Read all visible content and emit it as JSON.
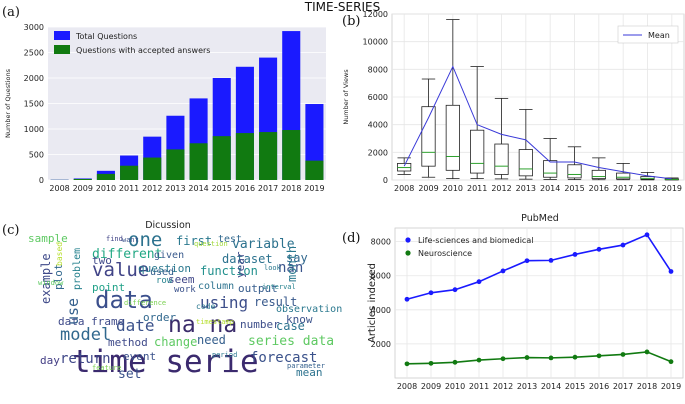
{
  "figure_title": "TIME-SERIES",
  "chart_data": [
    {
      "panel": "(a)",
      "type": "bar",
      "categories": [
        "2008",
        "2009",
        "2010",
        "2011",
        "2012",
        "2013",
        "2014",
        "2015",
        "2016",
        "2017",
        "2018",
        "2019"
      ],
      "series": [
        {
          "name": "Total Questions",
          "color": "#1a1aff",
          "values": [
            5,
            30,
            180,
            480,
            850,
            1260,
            1600,
            2000,
            2220,
            2400,
            2920,
            1490
          ]
        },
        {
          "name": "Questions with accepted answers",
          "color": "#117a11",
          "values": [
            3,
            20,
            120,
            280,
            440,
            600,
            720,
            860,
            920,
            940,
            980,
            380
          ]
        }
      ],
      "ylabel": "Number of Questions",
      "ylim": [
        0,
        3000
      ],
      "yticks": [
        0,
        500,
        1000,
        1500,
        2000,
        2500,
        3000
      ],
      "legend": "top-left",
      "grid": true
    },
    {
      "panel": "(b)",
      "type": "box",
      "categories": [
        "2008",
        "2009",
        "2010",
        "2011",
        "2012",
        "2013",
        "2014",
        "2015",
        "2016",
        "2017",
        "2018",
        "2019"
      ],
      "boxes": [
        {
          "min": 400,
          "q1": 650,
          "median": 900,
          "q3": 1200,
          "max": 1600
        },
        {
          "min": 200,
          "q1": 1000,
          "median": 2000,
          "q3": 5300,
          "max": 7300
        },
        {
          "min": 100,
          "q1": 700,
          "median": 1700,
          "q3": 5400,
          "max": 11600
        },
        {
          "min": 100,
          "q1": 500,
          "median": 1200,
          "q3": 3600,
          "max": 8200
        },
        {
          "min": 80,
          "q1": 400,
          "median": 1000,
          "q3": 2600,
          "max": 5900
        },
        {
          "min": 60,
          "q1": 300,
          "median": 800,
          "q3": 2200,
          "max": 5100
        },
        {
          "min": 40,
          "q1": 200,
          "median": 500,
          "q3": 1400,
          "max": 3000
        },
        {
          "min": 30,
          "q1": 150,
          "median": 400,
          "q3": 1100,
          "max": 2400
        },
        {
          "min": 20,
          "q1": 100,
          "median": 250,
          "q3": 700,
          "max": 1600
        },
        {
          "min": 20,
          "q1": 80,
          "median": 200,
          "q3": 500,
          "max": 1200
        },
        {
          "min": 10,
          "q1": 50,
          "median": 120,
          "q3": 250,
          "max": 550
        },
        {
          "min": 5,
          "q1": 20,
          "median": 40,
          "q3": 80,
          "max": 150
        }
      ],
      "mean": {
        "name": "Mean",
        "color": "#3a3ad8",
        "values": [
          1000,
          4500,
          8200,
          4000,
          3300,
          2900,
          1300,
          1300,
          900,
          600,
          300,
          80
        ]
      },
      "ylabel": "Number of Views",
      "ylim": [
        0,
        12000
      ],
      "yticks": [
        0,
        2000,
        4000,
        6000,
        8000,
        10000,
        12000
      ],
      "legend": "top-right",
      "grid": true
    },
    {
      "panel": "(c)",
      "type": "wordcloud",
      "title": "Dicussion",
      "words": [
        {
          "text": "time serie",
          "color": "#3b2a6e"
        },
        {
          "text": "data",
          "color": "#3b4f8c"
        },
        {
          "text": "value",
          "color": "#414487"
        },
        {
          "text": "na na",
          "color": "#3a2b6a"
        },
        {
          "text": "one",
          "color": "#2c728e"
        },
        {
          "text": "model",
          "color": "#31688e"
        },
        {
          "text": "using",
          "color": "#3d4e8a"
        },
        {
          "text": "date",
          "color": "#3b528b"
        },
        {
          "text": "data frame",
          "color": "#3e4a89"
        },
        {
          "text": "question",
          "color": "#2a788e"
        },
        {
          "text": "function",
          "color": "#21908d"
        },
        {
          "text": "series data",
          "color": "#5ec962"
        },
        {
          "text": "forecast",
          "color": "#3b528b"
        },
        {
          "text": "variable",
          "color": "#2c728e"
        },
        {
          "text": "different",
          "color": "#22a884"
        },
        {
          "text": "example",
          "color": "#3e4989"
        },
        {
          "text": "plot",
          "color": "#31688e"
        },
        {
          "text": "problem",
          "color": "#26828e"
        },
        {
          "text": "use",
          "color": "#35608d"
        },
        {
          "text": "first",
          "color": "#2a788e"
        },
        {
          "text": "dataset",
          "color": "#2c728e"
        },
        {
          "text": "result",
          "color": "#38598c"
        },
        {
          "text": "output",
          "color": "#365c8d"
        },
        {
          "text": "method",
          "color": "#3e4989"
        },
        {
          "text": "return",
          "color": "#3f4788"
        },
        {
          "text": "number",
          "color": "#3d4e8a"
        },
        {
          "text": "observation",
          "color": "#2a788e"
        },
        {
          "text": "seem",
          "color": "#404688"
        },
        {
          "text": "change",
          "color": "#5ec962"
        },
        {
          "text": "need",
          "color": "#355f8d"
        },
        {
          "text": "event",
          "color": "#3b528b"
        },
        {
          "text": "day",
          "color": "#433e85"
        },
        {
          "text": "set",
          "color": "#3b528b"
        },
        {
          "text": "mean",
          "color": "#2c728e"
        },
        {
          "text": "sample",
          "color": "#5ec962"
        },
        {
          "text": "based",
          "color": "#b5de2b"
        },
        {
          "text": "two",
          "color": "#3e4989"
        },
        {
          "text": "point",
          "color": "#1fa187"
        },
        {
          "text": "given",
          "color": "#38598c"
        },
        {
          "text": "used",
          "color": "#35608d"
        },
        {
          "text": "row",
          "color": "#26828e"
        },
        {
          "text": "column",
          "color": "#2c728e"
        },
        {
          "text": "work",
          "color": "#3b528b"
        },
        {
          "text": "code",
          "color": "#2a788e"
        },
        {
          "text": "order",
          "color": "#31688e"
        },
        {
          "text": "case",
          "color": "#2c728e"
        },
        {
          "text": "know",
          "color": "#3b528b"
        },
        {
          "text": "say",
          "color": "#31688e"
        },
        {
          "text": "nan",
          "color": "#3a548c"
        },
        {
          "text": "year",
          "color": "#3e4a89"
        },
        {
          "text": "test",
          "color": "#31688e"
        },
        {
          "text": "month",
          "color": "#2a788e"
        },
        {
          "text": "window",
          "color": "#5ec962"
        },
        {
          "text": "feature",
          "color": "#7ad151"
        },
        {
          "text": "interval",
          "color": "#26828e"
        },
        {
          "text": "difference",
          "color": "#7ad151"
        },
        {
          "text": "period",
          "color": "#2a788e"
        },
        {
          "text": "timestamp",
          "color": "#b5de2b"
        },
        {
          "text": "parameter",
          "color": "#35608d"
        },
        {
          "text": "want",
          "color": "#3b528b"
        },
        {
          "text": "find",
          "color": "#414487"
        },
        {
          "text": "look",
          "color": "#2a788e"
        },
        {
          "text": "question",
          "color": "#a0da39"
        }
      ]
    },
    {
      "panel": "(d)",
      "type": "line",
      "title": "PubMed",
      "categories": [
        "2008",
        "2009",
        "2010",
        "2011",
        "2012",
        "2013",
        "2014",
        "2015",
        "2016",
        "2017",
        "2018",
        "2019"
      ],
      "series": [
        {
          "name": "Life-sciences and biomedical",
          "color": "#1a1aff",
          "values": [
            4620,
            5000,
            5180,
            5650,
            6280,
            6880,
            6900,
            7250,
            7550,
            7800,
            8400,
            6250
          ]
        },
        {
          "name": "Neuroscience",
          "color": "#117a11",
          "values": [
            830,
            860,
            920,
            1050,
            1130,
            1200,
            1180,
            1220,
            1300,
            1380,
            1530,
            960
          ]
        }
      ],
      "ylabel": "Articles indexed",
      "ylim": [
        0,
        8800
      ],
      "yticks": [
        2000,
        4000,
        6000,
        8000
      ],
      "legend": "top-left",
      "grid": true
    }
  ]
}
